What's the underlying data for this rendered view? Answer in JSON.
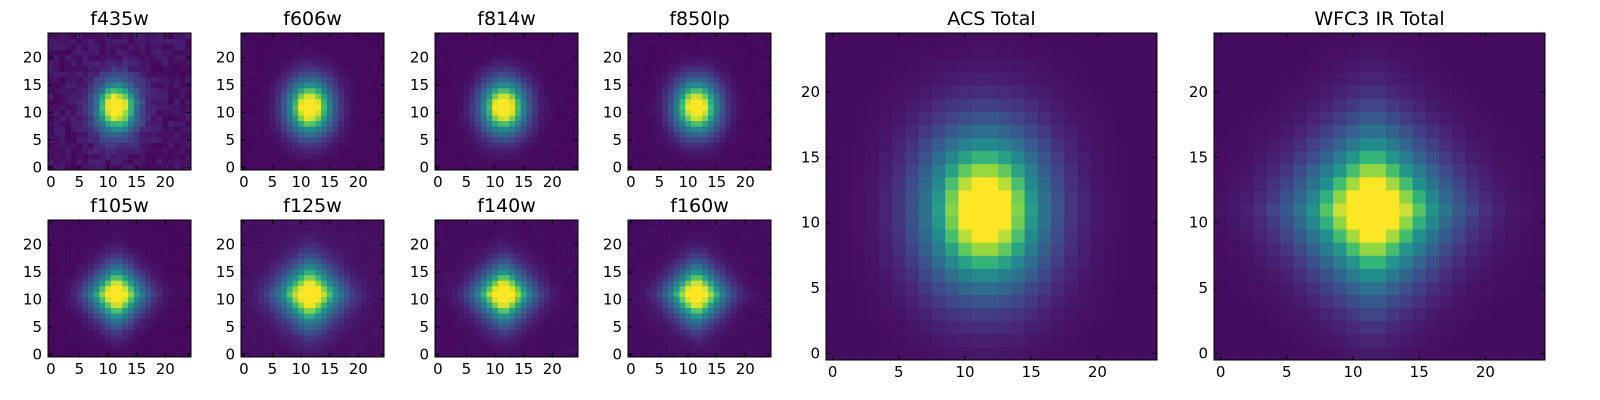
{
  "figure": {
    "type": "heatmap",
    "colormap": "viridis"
  },
  "chart_data": [
    {
      "type": "heatmap",
      "title": "f435w",
      "size": 25,
      "center": [
        11.5,
        11.0
      ],
      "sigma": [
        2.6,
        3.4
      ],
      "profile": "gaussian",
      "noise": 0.09,
      "background": 0.06,
      "xticks": [
        0,
        5,
        10,
        15,
        20
      ],
      "yticks": [
        0,
        5,
        10,
        15,
        20
      ],
      "xlim": [
        0,
        24
      ],
      "ylim": [
        0,
        24
      ]
    },
    {
      "type": "heatmap",
      "title": "f606w",
      "size": 25,
      "center": [
        11.5,
        11.0
      ],
      "sigma": [
        2.8,
        3.6
      ],
      "profile": "gaussian",
      "noise": 0.02,
      "background": 0.03,
      "xticks": [
        0,
        5,
        10,
        15,
        20
      ],
      "yticks": [
        0,
        5,
        10,
        15,
        20
      ],
      "xlim": [
        0,
        24
      ],
      "ylim": [
        0,
        24
      ]
    },
    {
      "type": "heatmap",
      "title": "f814w",
      "size": 25,
      "center": [
        11.5,
        11.0
      ],
      "sigma": [
        2.8,
        3.5
      ],
      "profile": "gaussian",
      "noise": 0.02,
      "background": 0.03,
      "xticks": [
        0,
        5,
        10,
        15,
        20
      ],
      "yticks": [
        0,
        5,
        10,
        15,
        20
      ],
      "xlim": [
        0,
        24
      ],
      "ylim": [
        0,
        24
      ]
    },
    {
      "type": "heatmap",
      "title": "f850lp",
      "size": 25,
      "center": [
        11.5,
        11.0
      ],
      "sigma": [
        2.8,
        3.5
      ],
      "profile": "gaussian",
      "noise": 0.02,
      "background": 0.03,
      "xticks": [
        0,
        5,
        10,
        15,
        20
      ],
      "yticks": [
        0,
        5,
        10,
        15,
        20
      ],
      "xlim": [
        0,
        24
      ],
      "ylim": [
        0,
        24
      ]
    },
    {
      "type": "heatmap",
      "title": "f105w",
      "size": 25,
      "center": [
        11.5,
        11.0
      ],
      "sigma": [
        3.3,
        3.6
      ],
      "profile": "diamond",
      "noise": 0.02,
      "background": 0.03,
      "xticks": [
        0,
        5,
        10,
        15,
        20
      ],
      "yticks": [
        0,
        5,
        10,
        15,
        20
      ],
      "xlim": [
        0,
        24
      ],
      "ylim": [
        0,
        24
      ]
    },
    {
      "type": "heatmap",
      "title": "f125w",
      "size": 25,
      "center": [
        11.5,
        11.0
      ],
      "sigma": [
        3.8,
        4.0
      ],
      "profile": "diamond",
      "noise": 0.02,
      "background": 0.05,
      "xticks": [
        0,
        5,
        10,
        15,
        20
      ],
      "yticks": [
        0,
        5,
        10,
        15,
        20
      ],
      "xlim": [
        0,
        24
      ],
      "ylim": [
        0,
        24
      ]
    },
    {
      "type": "heatmap",
      "title": "f140w",
      "size": 25,
      "center": [
        11.5,
        11.0
      ],
      "sigma": [
        3.4,
        3.6
      ],
      "profile": "diamond",
      "noise": 0.02,
      "background": 0.04,
      "xticks": [
        0,
        5,
        10,
        15,
        20
      ],
      "yticks": [
        0,
        5,
        10,
        15,
        20
      ],
      "xlim": [
        0,
        24
      ],
      "ylim": [
        0,
        24
      ]
    },
    {
      "type": "heatmap",
      "title": "f160w",
      "size": 25,
      "center": [
        11.5,
        11.0
      ],
      "sigma": [
        3.4,
        3.6
      ],
      "profile": "diamond",
      "noise": 0.02,
      "background": 0.04,
      "xticks": [
        0,
        5,
        10,
        15,
        20
      ],
      "yticks": [
        0,
        5,
        10,
        15,
        20
      ],
      "xlim": [
        0,
        24
      ],
      "ylim": [
        0,
        24
      ]
    },
    {
      "type": "heatmap",
      "title": "ACS Total",
      "size": 25,
      "center": [
        11.5,
        11.0
      ],
      "sigma": [
        3.3,
        4.3
      ],
      "profile": "gaussian",
      "noise": 0.0,
      "background": 0.04,
      "xticks": [
        0,
        5,
        10,
        15,
        20
      ],
      "yticks": [
        0,
        5,
        10,
        15,
        20
      ],
      "xlim": [
        0,
        24
      ],
      "ylim": [
        0,
        24
      ]
    },
    {
      "type": "heatmap",
      "title": "WFC3 IR Total",
      "size": 25,
      "center": [
        11.5,
        11.0
      ],
      "sigma": [
        3.9,
        4.3
      ],
      "profile": "diamond",
      "noise": 0.0,
      "background": 0.04,
      "xticks": [
        0,
        5,
        10,
        15,
        20
      ],
      "yticks": [
        0,
        5,
        10,
        15,
        20
      ],
      "xlim": [
        0,
        24
      ],
      "ylim": [
        0,
        24
      ]
    }
  ]
}
